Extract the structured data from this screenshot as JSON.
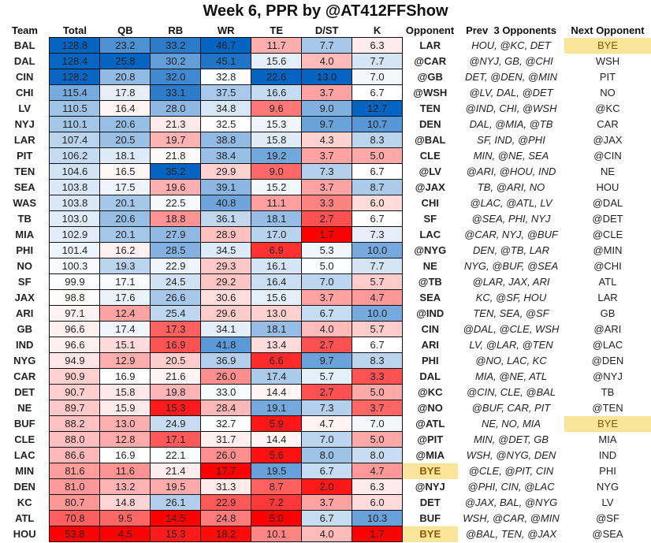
{
  "chart_data": {
    "type": "table",
    "title": "Week 6, PPR by @AT412FFShow",
    "columns": [
      "Team",
      "Total",
      "QB",
      "RB",
      "WR",
      "TE",
      "D/ST",
      "K",
      "Opponent",
      "Prev  3 Opponents",
      "Next Opponent"
    ],
    "rows": [
      {
        "team": "BAL",
        "total": "128.8",
        "qb": "23.2",
        "rb": "33.2",
        "wr": "46.7",
        "te": "11.7",
        "dst": "7.7",
        "k": "6.3",
        "opp": "LAR",
        "prev": "HOU, @KC, DET",
        "next": "BYE"
      },
      {
        "team": "DAL",
        "total": "128.4",
        "qb": "25.8",
        "rb": "30.2",
        "wr": "45.1",
        "te": "15.6",
        "dst": "4.0",
        "k": "7.7",
        "opp": "@CAR",
        "prev": "@NYJ, GB, @CHI",
        "next": "WSH"
      },
      {
        "team": "CIN",
        "total": "128.2",
        "qb": "20.8",
        "rb": "32.0",
        "wr": "32.8",
        "te": "22.6",
        "dst": "13.0",
        "k": "7.0",
        "opp": "@GB",
        "prev": "DET, @DEN, @MIN",
        "next": "PIT"
      },
      {
        "team": "CHI",
        "total": "115.4",
        "qb": "17.8",
        "rb": "33.1",
        "wr": "37.5",
        "te": "16.6",
        "dst": "3.7",
        "k": "6.7",
        "opp": "@WSH",
        "prev": "@LV, DAL, @DET",
        "next": "NO"
      },
      {
        "team": "LV",
        "total": "110.5",
        "qb": "16.4",
        "rb": "28.0",
        "wr": "34.8",
        "te": "9.6",
        "dst": "9.0",
        "k": "12.7",
        "opp": "TEN",
        "prev": "@IND, CHI, @WSH",
        "next": "@KC"
      },
      {
        "team": "NYJ",
        "total": "110.1",
        "qb": "20.6",
        "rb": "21.3",
        "wr": "32.5",
        "te": "15.3",
        "dst": "9.7",
        "k": "10.7",
        "opp": "DEN",
        "prev": "DAL, @MIA, @TB",
        "next": "CAR"
      },
      {
        "team": "LAR",
        "total": "107.4",
        "qb": "20.5",
        "rb": "19.7",
        "wr": "38.8",
        "te": "15.8",
        "dst": "4.3",
        "k": "8.3",
        "opp": "@BAL",
        "prev": "SF, IND, @PHI",
        "next": "@JAX"
      },
      {
        "team": "PIT",
        "total": "106.2",
        "qb": "18.1",
        "rb": "21.8",
        "wr": "38.4",
        "te": "19.2",
        "dst": "3.7",
        "k": "5.0",
        "opp": "CLE",
        "prev": "MIN, @NE, SEA",
        "next": "@CIN"
      },
      {
        "team": "TEN",
        "total": "104.6",
        "qb": "16.5",
        "rb": "35.2",
        "wr": "29.9",
        "te": "9.0",
        "dst": "7.3",
        "k": "6.7",
        "opp": "@LV",
        "prev": "@ARI, @HOU, IND",
        "next": "NE"
      },
      {
        "team": "SEA",
        "total": "103.8",
        "qb": "17.5",
        "rb": "19.6",
        "wr": "39.1",
        "te": "15.2",
        "dst": "3.7",
        "k": "8.7",
        "opp": "@JAX",
        "prev": "TB, @ARI, NO",
        "next": "HOU"
      },
      {
        "team": "WAS",
        "total": "103.8",
        "qb": "20.1",
        "rb": "22.5",
        "wr": "40.8",
        "te": "11.1",
        "dst": "3.3",
        "k": "6.0",
        "opp": "CHI",
        "prev": "@LAC, @ATL, LV",
        "next": "@DAL"
      },
      {
        "team": "TB",
        "total": "103.0",
        "qb": "20.6",
        "rb": "18.8",
        "wr": "36.1",
        "te": "18.1",
        "dst": "2.7",
        "k": "6.7",
        "opp": "SF",
        "prev": "@SEA, PHI, NYJ",
        "next": "@DET"
      },
      {
        "team": "MIA",
        "total": "102.9",
        "qb": "20.1",
        "rb": "27.9",
        "wr": "28.9",
        "te": "17.0",
        "dst": "1.7",
        "k": "7.3",
        "opp": "LAC",
        "prev": "@CAR, NYJ, @BUF",
        "next": "@CLE"
      },
      {
        "team": "PHI",
        "total": "101.4",
        "qb": "16.2",
        "rb": "28.5",
        "wr": "34.5",
        "te": "6.9",
        "dst": "5.3",
        "k": "10.0",
        "opp": "@NYG",
        "prev": "DEN, @TB, LAR",
        "next": "@MIN"
      },
      {
        "team": "NO",
        "total": "100.3",
        "qb": "19.3",
        "rb": "22.9",
        "wr": "29.3",
        "te": "16.1",
        "dst": "5.0",
        "k": "7.7",
        "opp": "NE",
        "prev": "NYG, @BUF, @SEA",
        "next": "@CHI"
      },
      {
        "team": "SF",
        "total": "99.9",
        "qb": "17.1",
        "rb": "24.5",
        "wr": "29.2",
        "te": "16.4",
        "dst": "7.0",
        "k": "5.7",
        "opp": "@TB",
        "prev": "@LAR, JAX, ARI",
        "next": "ATL"
      },
      {
        "team": "JAX",
        "total": "98.8",
        "qb": "17.6",
        "rb": "26.6",
        "wr": "30.6",
        "te": "15.6",
        "dst": "3.7",
        "k": "4.7",
        "opp": "SEA",
        "prev": "KC, @SF, HOU",
        "next": "LAR"
      },
      {
        "team": "ARI",
        "total": "97.1",
        "qb": "12.4",
        "rb": "25.4",
        "wr": "29.6",
        "te": "13.0",
        "dst": "6.7",
        "k": "10.0",
        "opp": "@IND",
        "prev": "TEN, SEA, @SF",
        "next": "GB"
      },
      {
        "team": "GB",
        "total": "96.6",
        "qb": "17.4",
        "rb": "17.3",
        "wr": "34.1",
        "te": "18.1",
        "dst": "4.0",
        "k": "5.7",
        "opp": "CIN",
        "prev": "@DAL, @CLE, WSH",
        "next": "@ARI"
      },
      {
        "team": "IND",
        "total": "96.6",
        "qb": "15.1",
        "rb": "16.9",
        "wr": "41.8",
        "te": "13.4",
        "dst": "2.7",
        "k": "6.7",
        "opp": "ARI",
        "prev": "LV, @LAR, @TEN",
        "next": "@LAC"
      },
      {
        "team": "NYG",
        "total": "94.9",
        "qb": "12.9",
        "rb": "20.5",
        "wr": "36.9",
        "te": "6.6",
        "dst": "9.7",
        "k": "8.3",
        "opp": "PHI",
        "prev": "@NO, LAC, KC",
        "next": "@DEN"
      },
      {
        "team": "CAR",
        "total": "90.9",
        "qb": "16.9",
        "rb": "21.6",
        "wr": "26.0",
        "te": "17.4",
        "dst": "5.7",
        "k": "3.3",
        "opp": "DAL",
        "prev": "MIA, @NE, ATL",
        "next": "@NYJ"
      },
      {
        "team": "DET",
        "total": "90.7",
        "qb": "15.8",
        "rb": "19.8",
        "wr": "33.0",
        "te": "14.4",
        "dst": "2.7",
        "k": "5.0",
        "opp": "@KC",
        "prev": "@CIN, CLE, @BAL",
        "next": "TB"
      },
      {
        "team": "NE",
        "total": "89.7",
        "qb": "15.9",
        "rb": "15.3",
        "wr": "28.4",
        "te": "19.1",
        "dst": "7.3",
        "k": "3.7",
        "opp": "@NO",
        "prev": "@BUF, CAR, PIT",
        "next": "@TEN"
      },
      {
        "team": "BUF",
        "total": "88.2",
        "qb": "13.0",
        "rb": "24.9",
        "wr": "32.7",
        "te": "5.9",
        "dst": "4.7",
        "k": "7.0",
        "opp": "@ATL",
        "prev": "NE, NO, MIA",
        "next": "BYE"
      },
      {
        "team": "CLE",
        "total": "88.0",
        "qb": "12.8",
        "rb": "17.1",
        "wr": "31.7",
        "te": "14.4",
        "dst": "7.0",
        "k": "5.0",
        "opp": "@PIT",
        "prev": "MIN, @DET, GB",
        "next": "MIA"
      },
      {
        "team": "LAC",
        "total": "86.6",
        "qb": "16.9",
        "rb": "22.1",
        "wr": "26.0",
        "te": "5.6",
        "dst": "8.0",
        "k": "8.0",
        "opp": "@MIA",
        "prev": "WSH, @NYG, DEN",
        "next": "IND"
      },
      {
        "team": "MIN",
        "total": "81.6",
        "qb": "11.6",
        "rb": "21.4",
        "wr": "17.7",
        "te": "19.5",
        "dst": "6.7",
        "k": "4.7",
        "opp": "BYE",
        "prev": "@CLE, @PIT, CIN",
        "next": "PHI"
      },
      {
        "team": "DEN",
        "total": "81.0",
        "qb": "13.2",
        "rb": "19.5",
        "wr": "31.3",
        "te": "8.7",
        "dst": "2.0",
        "k": "6.3",
        "opp": "@NYJ",
        "prev": "@PHI, CIN, @LAC",
        "next": "NYG"
      },
      {
        "team": "KC",
        "total": "80.7",
        "qb": "14.8",
        "rb": "26.1",
        "wr": "22.9",
        "te": "7.2",
        "dst": "3.7",
        "k": "6.0",
        "opp": "DET",
        "prev": "@JAX, BAL, @NYG",
        "next": "LV"
      },
      {
        "team": "ATL",
        "total": "70.8",
        "qb": "9.5",
        "rb": "14.5",
        "wr": "24.8",
        "te": "5.0",
        "dst": "6.7",
        "k": "10.3",
        "opp": "BUF",
        "prev": "WSH, @CAR, @MIN",
        "next": "@SF"
      },
      {
        "team": "HOU",
        "total": "53.8",
        "qb": "4.5",
        "rb": "15.3",
        "wr": "18.2",
        "te": "10.1",
        "dst": "4.0",
        "k": "1.7",
        "opp": "BYE",
        "prev": "@BAL, TEN, @JAX",
        "next": "@SEA"
      }
    ],
    "color_scale": {
      "low": "#ff0000",
      "mid": "#ffffff",
      "high": "#0563c1",
      "bye_fill": "#fbe59a",
      "bye_text": "#8a5a00"
    }
  }
}
